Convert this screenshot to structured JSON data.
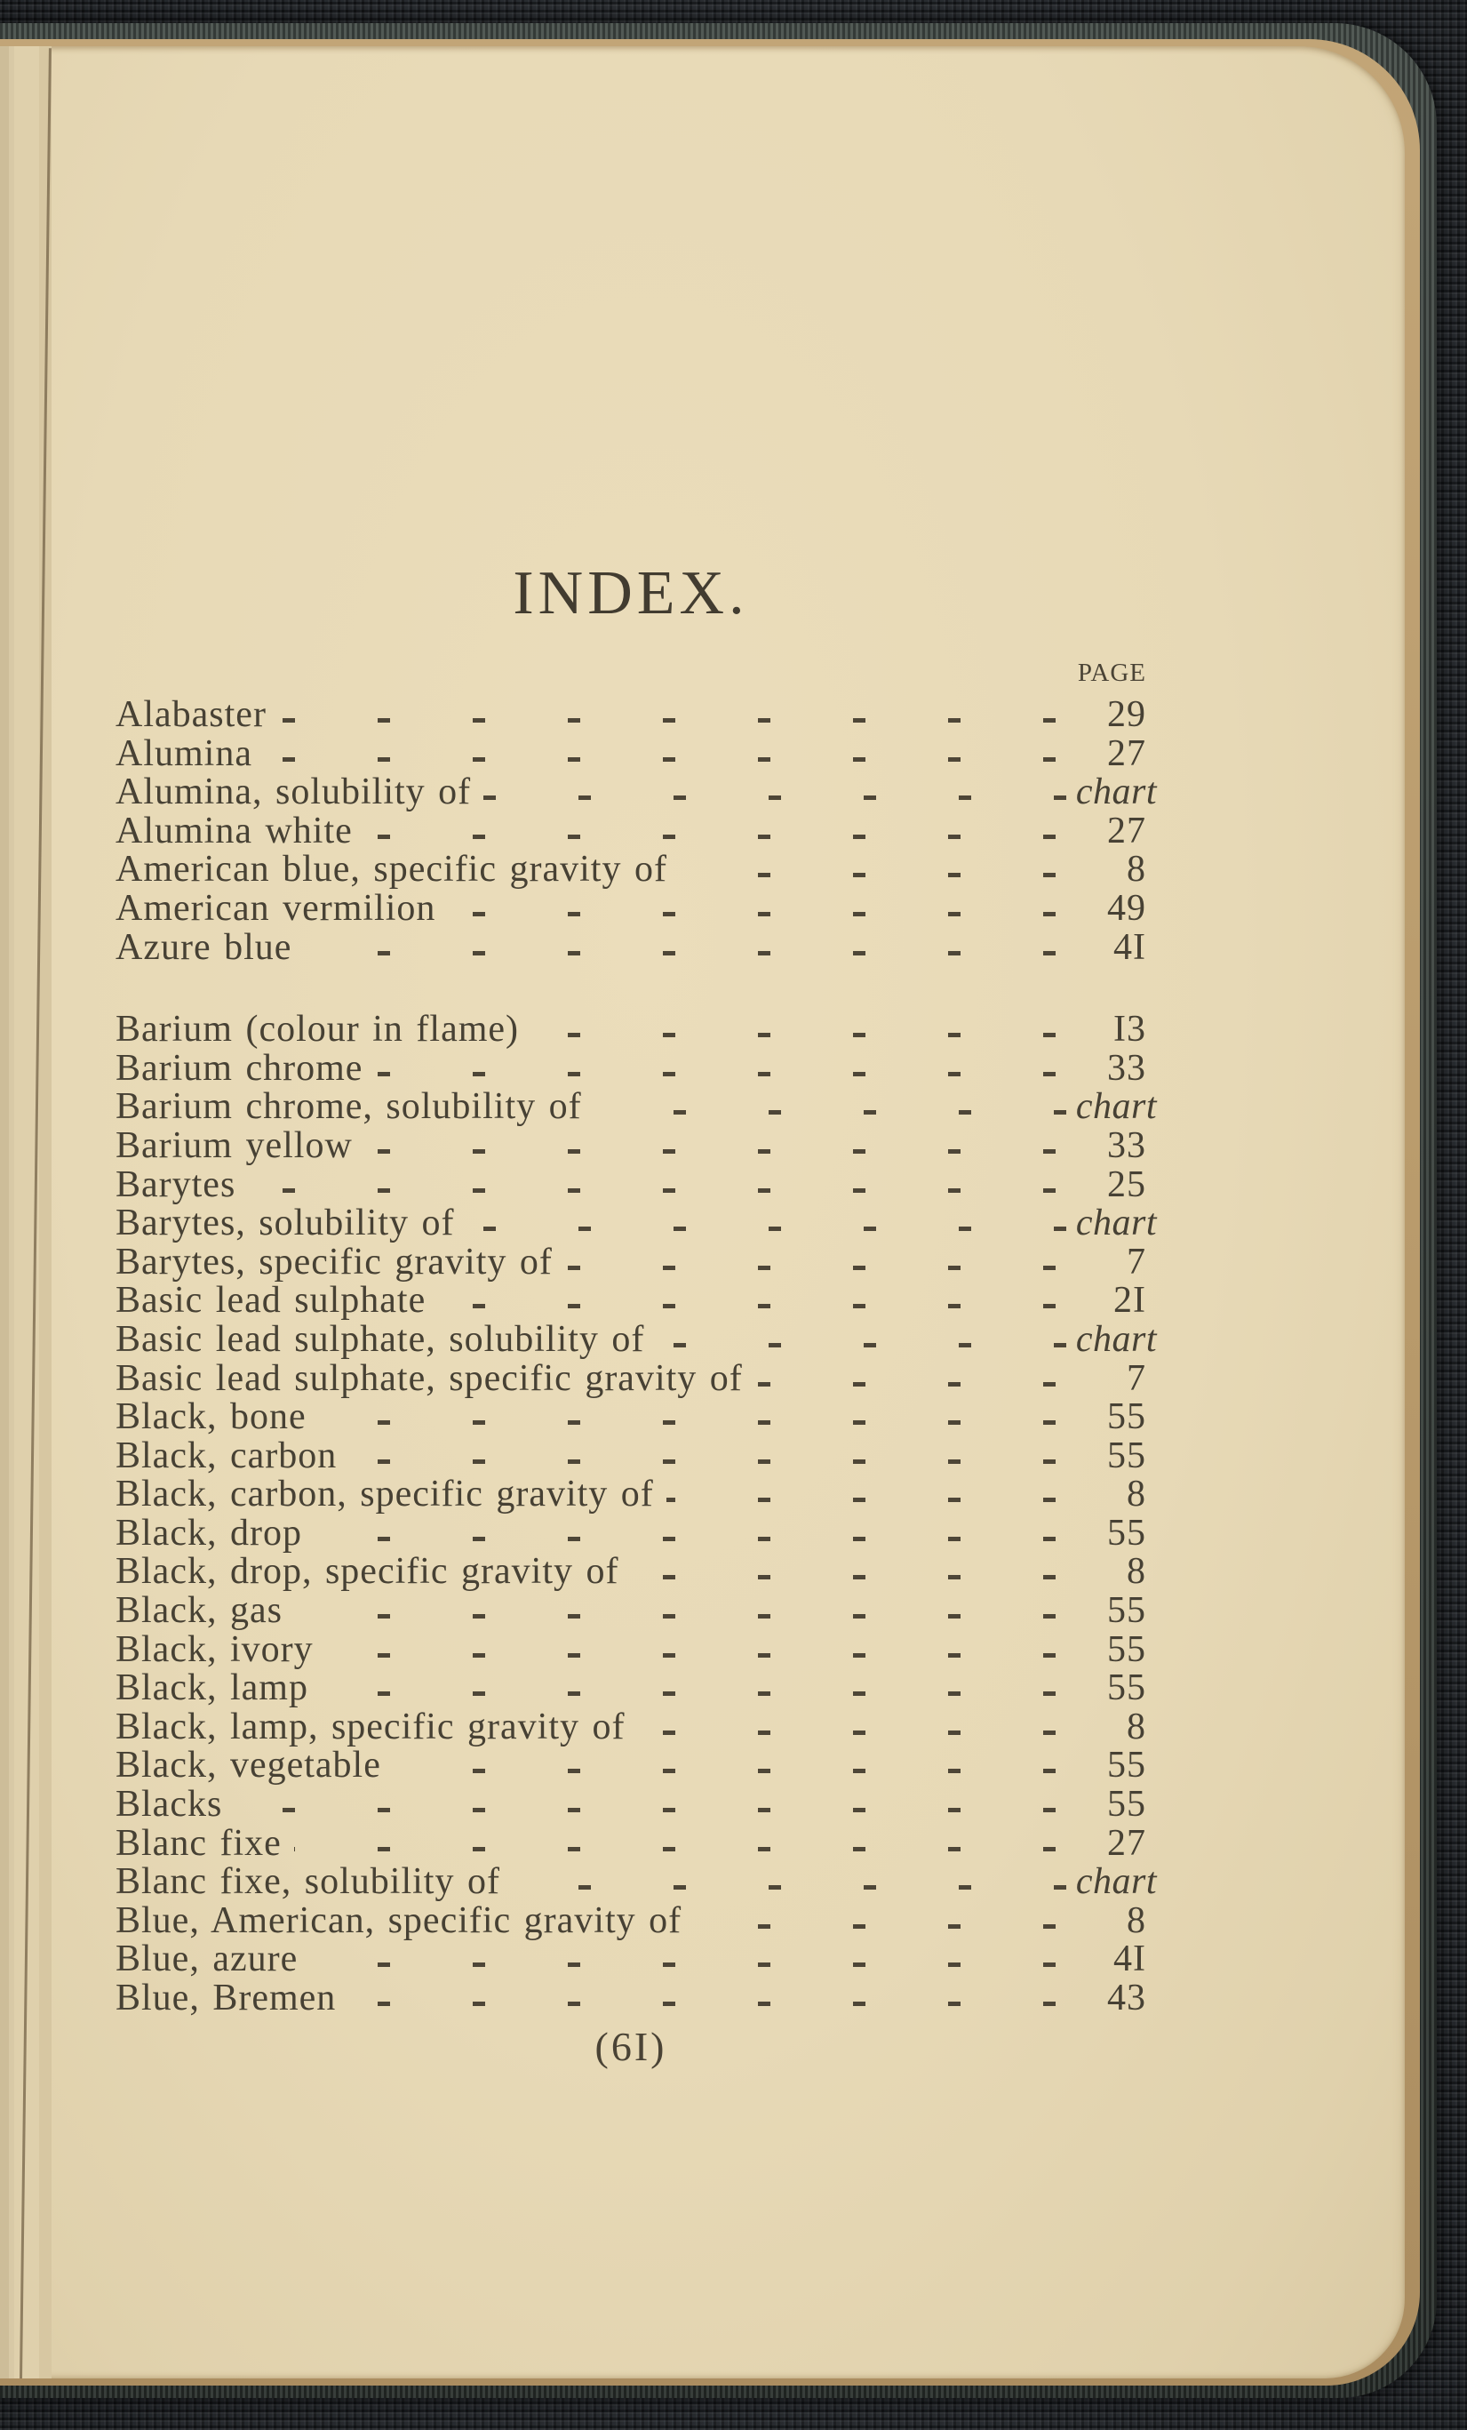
{
  "page": {
    "title": "INDEX.",
    "column_header": "PAGE",
    "footer": "(6I)",
    "paper_color": "#e7d9b6",
    "ink_color": "#474134",
    "cover_color": "#39413d",
    "backdrop_color": "#22262b",
    "page_stack_edge_color": "#b99b6c"
  },
  "index": {
    "sections": [
      {
        "id": "A",
        "entries": [
          {
            "label": "Alabaster",
            "page": "29"
          },
          {
            "label": "Alumina",
            "page": "27"
          },
          {
            "label": "Alumina, solubility of",
            "page": "chart",
            "italic": true
          },
          {
            "label": "Alumina white",
            "page": "27"
          },
          {
            "label": "American blue, specific gravity of",
            "page": "8"
          },
          {
            "label": "American vermilion",
            "page": "49"
          },
          {
            "label": "Azure blue",
            "page": "4I"
          }
        ]
      },
      {
        "id": "B",
        "entries": [
          {
            "label": "Barium (colour in flame)",
            "page": "I3"
          },
          {
            "label": "Barium chrome",
            "page": "33"
          },
          {
            "label": "Barium chrome, solubility of",
            "page": "chart",
            "italic": true
          },
          {
            "label": "Barium yellow",
            "page": "33"
          },
          {
            "label": "Barytes",
            "page": "25"
          },
          {
            "label": "Barytes, solubility of",
            "page": "chart",
            "italic": true
          },
          {
            "label": "Barytes, specific gravity of",
            "page": "7"
          },
          {
            "label": "Basic lead sulphate",
            "page": "2I"
          },
          {
            "label": "Basic lead sulphate, solubility of",
            "page": "chart",
            "italic": true
          },
          {
            "label": "Basic lead sulphate, specific gravity of",
            "page": "7"
          },
          {
            "label": "Black, bone",
            "page": "55"
          },
          {
            "label": "Black, carbon",
            "page": "55"
          },
          {
            "label": "Black, carbon, specific gravity of",
            "page": "8"
          },
          {
            "label": "Black, drop",
            "page": "55"
          },
          {
            "label": "Black, drop, specific gravity of",
            "page": "8"
          },
          {
            "label": "Black, gas",
            "page": "55"
          },
          {
            "label": "Black, ivory",
            "page": "55"
          },
          {
            "label": "Black, lamp",
            "page": "55"
          },
          {
            "label": "Black, lamp, specific gravity of",
            "page": "8"
          },
          {
            "label": "Black, vegetable",
            "page": "55"
          },
          {
            "label": "Blacks",
            "page": "55"
          },
          {
            "label": "Blanc fixe",
            "page": "27"
          },
          {
            "label": "Blanc fixe, solubility of",
            "page": "chart",
            "italic": true
          },
          {
            "label": "Blue, American, specific gravity of",
            "page": "8"
          },
          {
            "label": "Blue, azure",
            "page": "4I"
          },
          {
            "label": "Blue, Bremen",
            "page": "43"
          }
        ]
      }
    ]
  }
}
